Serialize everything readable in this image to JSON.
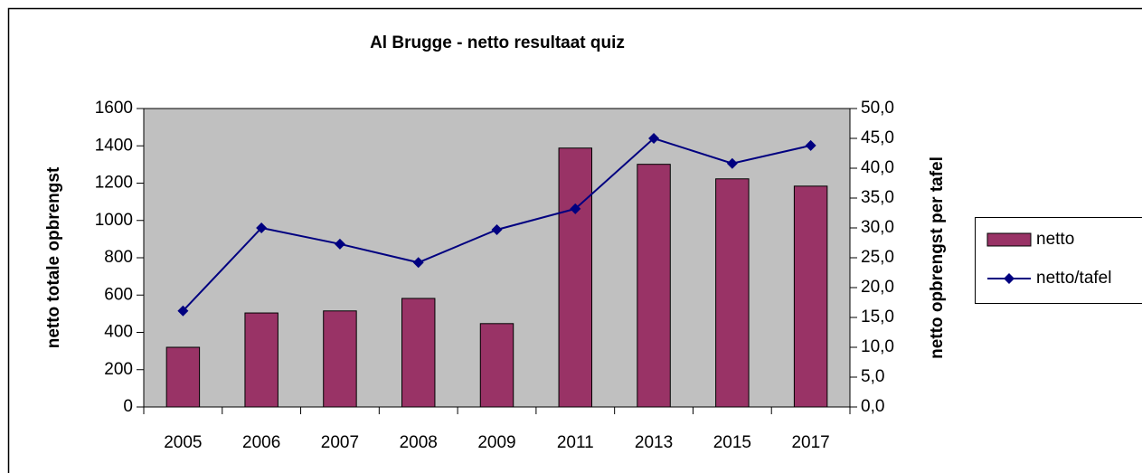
{
  "chart_data": {
    "type": "bar_line",
    "title": "Al Brugge - netto resultaat quiz",
    "categories": [
      "2005",
      "2006",
      "2007",
      "2008",
      "2009",
      "2011",
      "2013",
      "2015",
      "2017"
    ],
    "series": [
      {
        "name": "netto",
        "type": "bar",
        "color": "#993366",
        "values": [
          320,
          504,
          515,
          582,
          447,
          1388,
          1301,
          1223,
          1184
        ]
      },
      {
        "name": "netto/tafel",
        "type": "line",
        "axis": "y2",
        "color": "#000080",
        "values": [
          16.1,
          30.0,
          27.3,
          24.2,
          29.7,
          33.2,
          45.0,
          40.8,
          43.8
        ]
      }
    ],
    "ylabel": "netto totale opbrengst",
    "y2label": "netto opbrengst per tafel",
    "ylim": [
      0,
      1600
    ],
    "yticks": [
      0,
      200,
      400,
      600,
      800,
      1000,
      1200,
      1400,
      1600
    ],
    "y2lim": [
      0,
      50
    ],
    "y2ticks": [
      {
        "value": 0,
        "label": "0,0"
      },
      {
        "value": 5,
        "label": "5,0"
      },
      {
        "value": 10,
        "label": "10,0"
      },
      {
        "value": 15,
        "label": "15,0"
      },
      {
        "value": 20,
        "label": "20,0"
      },
      {
        "value": 25,
        "label": "25,0"
      },
      {
        "value": 30,
        "label": "30,0"
      },
      {
        "value": 35,
        "label": "35,0"
      },
      {
        "value": 40,
        "label": "40,0"
      },
      {
        "value": 45,
        "label": "45,0"
      },
      {
        "value": 50,
        "label": "50,0"
      }
    ],
    "legend": "right",
    "plot_background": "#c0c0c0"
  }
}
